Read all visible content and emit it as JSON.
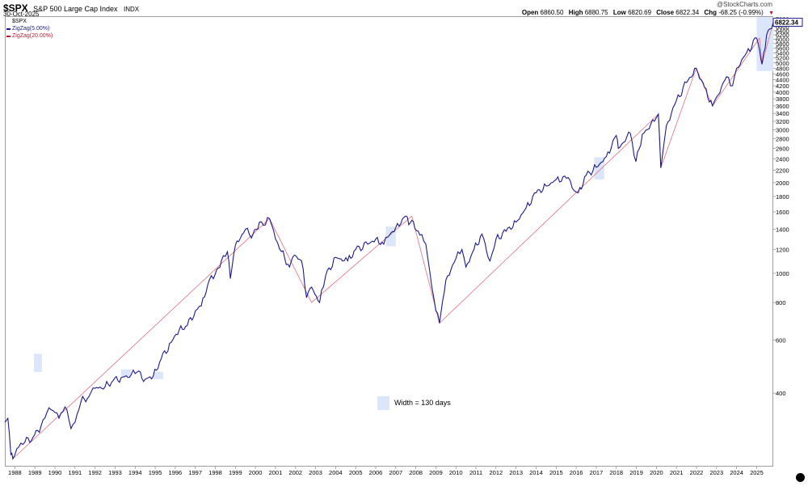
{
  "header": {
    "ticker": "$SPX",
    "index_name": "S&P 500 Large Cap Index",
    "index_type": "INDX",
    "date": "30-Oct-2025",
    "brand": "@StockCharts.com",
    "open_label": "Open",
    "open_value": "6860.50",
    "high_label": "High",
    "high_value": "6880.75",
    "low_label": "Low",
    "low_value": "6820.69",
    "close_label": "Close",
    "close_value": "6822.34",
    "chg_label": "Chg",
    "chg_value": "-68.25 (-0.99%)"
  },
  "legend": {
    "items": [
      {
        "label": "$SPX",
        "color": "#000000"
      },
      {
        "label": "ZigZag(5.00%)",
        "color": "#1c1a8a"
      },
      {
        "label": "ZigZag(20.00%)",
        "color": "#c0162c"
      }
    ]
  },
  "annotation": {
    "width_label": "Width = 130 days"
  },
  "last_price_tag": "6822.34",
  "colors": {
    "price": "#1c1a8a",
    "zigzag20": "#e07080",
    "band": "#dce6fb",
    "tag": "#1c1a8a"
  },
  "chart_data": {
    "type": "line",
    "y_scale": "log",
    "title": "$SPX S&P 500 Large Cap Index",
    "xlabel": "",
    "ylabel": "",
    "xlim": [
      1987.5,
      2025.83
    ],
    "ylim": [
      228,
      7150
    ],
    "x_ticks": [
      "1988",
      "1989",
      "1990",
      "1991",
      "1992",
      "1993",
      "1994",
      "1995",
      "1996",
      "1997",
      "1998",
      "1999",
      "2000",
      "2001",
      "2002",
      "2003",
      "2004",
      "2005",
      "2006",
      "2007",
      "2008",
      "2009",
      "2010",
      "2011",
      "2012",
      "2013",
      "2014",
      "2015",
      "2016",
      "2017",
      "2018",
      "2019",
      "2020",
      "2021",
      "2022",
      "2023",
      "2024",
      "2025"
    ],
    "y_ticks": [
      400,
      600,
      800,
      1000,
      1200,
      1400,
      1600,
      1800,
      2000,
      2200,
      2400,
      2600,
      2800,
      3000,
      3200,
      3400,
      3600,
      3800,
      4000,
      4200,
      4400,
      4600,
      4800,
      5000,
      5200,
      5400,
      5600,
      5800,
      6000,
      6200,
      6400,
      6600,
      6800,
      7000
    ],
    "grid": false,
    "legend_position": "top-left",
    "series": [
      {
        "name": "$SPX",
        "x": [
          1987.5,
          1987.65,
          1987.8,
          1987.9,
          1988.2,
          1988.5,
          1988.9,
          1989.3,
          1989.6,
          1989.9,
          1990.2,
          1990.5,
          1990.8,
          1991.0,
          1991.3,
          1991.7,
          1992.0,
          1992.5,
          1992.9,
          1993.3,
          1993.8,
          1994.1,
          1994.5,
          1994.9,
          1995.3,
          1995.8,
          1996.2,
          1996.6,
          1997.0,
          1997.3,
          1997.7,
          1997.9,
          1998.3,
          1998.6,
          1998.75,
          1999.0,
          1999.5,
          1999.8,
          2000.2,
          2000.5,
          2000.7,
          2001.0,
          2001.3,
          2001.7,
          2001.95,
          2002.3,
          2002.55,
          2002.8,
          2003.2,
          2003.5,
          2004.0,
          2004.6,
          2005.0,
          2005.6,
          2006.0,
          2006.4,
          2006.6,
          2007.0,
          2007.5,
          2007.65,
          2007.8,
          2008.2,
          2008.5,
          2008.8,
          2009.0,
          2009.18,
          2009.5,
          2010.0,
          2010.3,
          2010.5,
          2010.9,
          2011.3,
          2011.7,
          2012.0,
          2012.5,
          2013.0,
          2013.5,
          2014.0,
          2014.5,
          2015.0,
          2015.6,
          2015.8,
          2016.1,
          2016.5,
          2017.0,
          2017.5,
          2018.0,
          2018.1,
          2018.7,
          2018.98,
          2019.3,
          2019.9,
          2020.1,
          2020.22,
          2020.5,
          2021.0,
          2021.5,
          2021.99,
          2022.4,
          2022.8,
          2023.0,
          2023.5,
          2023.8,
          2024.0,
          2024.5,
          2025.0,
          2025.15,
          2025.27,
          2025.5,
          2025.83
        ],
        "y": [
          320,
          330,
          250,
          242,
          265,
          275,
          285,
          310,
          345,
          350,
          330,
          360,
          305,
          320,
          375,
          390,
          415,
          420,
          440,
          450,
          460,
          470,
          445,
          455,
          520,
          590,
          650,
          670,
          750,
          780,
          950,
          960,
          1100,
          1180,
          960,
          1240,
          1400,
          1310,
          1480,
          1450,
          1520,
          1300,
          1180,
          1050,
          1150,
          1100,
          830,
          900,
          800,
          980,
          1130,
          1100,
          1200,
          1250,
          1300,
          1250,
          1320,
          1420,
          1550,
          1450,
          1500,
          1340,
          1250,
          900,
          750,
          683,
          950,
          1120,
          1200,
          1050,
          1200,
          1350,
          1100,
          1300,
          1380,
          1480,
          1650,
          1850,
          1950,
          2050,
          2080,
          1920,
          1850,
          2120,
          2250,
          2440,
          2870,
          2600,
          2920,
          2350,
          2900,
          3200,
          3380,
          2240,
          3100,
          3750,
          4300,
          4800,
          4150,
          3600,
          3850,
          4500,
          4200,
          4800,
          5400,
          6050,
          5500,
          4950,
          6200,
          6822.34
        ]
      },
      {
        "name": "ZigZag(20.00%)",
        "x": [
          1987.9,
          2000.7,
          2002.8,
          2007.8,
          2009.18,
          2020.1,
          2020.22,
          2021.99,
          2022.8,
          2025.15,
          2025.27,
          2025.83
        ],
        "y": [
          242,
          1520,
          800,
          1550,
          683,
          3380,
          2240,
          4800,
          3600,
          6050,
          4950,
          6822.34
        ]
      }
    ],
    "annotations": [
      "Width = 130 days"
    ]
  }
}
